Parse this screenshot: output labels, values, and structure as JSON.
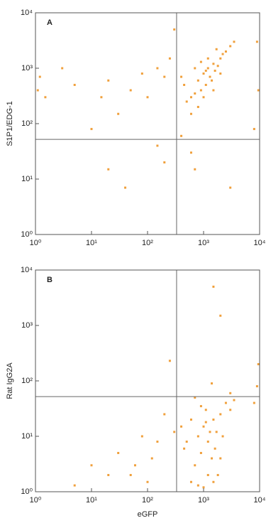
{
  "chart_data": [
    {
      "type": "scatter",
      "title": "A",
      "y_label": "S1P1/EDG-1",
      "log_x": true,
      "log_y": true,
      "color": "#f0a03c",
      "xlim": [
        1,
        10000
      ],
      "ylim": [
        1,
        10000
      ],
      "xticks": [
        {
          "value": 1,
          "label": "10⁰"
        },
        {
          "value": 10,
          "label": "10¹"
        },
        {
          "value": 100,
          "label": "10²"
        },
        {
          "value": 1000,
          "label": "10³"
        },
        {
          "value": 10000,
          "label": "10⁴"
        }
      ],
      "yticks": [
        {
          "value": 1,
          "label": "10⁰"
        },
        {
          "value": 10,
          "label": "10¹"
        },
        {
          "value": 100,
          "label": "10²"
        },
        {
          "value": 1000,
          "label": "10³"
        },
        {
          "value": 10000,
          "label": "10⁴"
        }
      ],
      "quadrant_x": 330,
      "quadrant_y": 52,
      "x": [
        800,
        1000,
        1200,
        1500,
        900,
        700,
        1100,
        1300,
        1600,
        2000,
        2500,
        1800,
        600,
        500,
        1000,
        1400,
        2200,
        3000,
        400,
        700,
        1200,
        800,
        1500,
        2000,
        900,
        600,
        3500,
        450,
        1700,
        1100,
        1.2,
        1.1,
        1.5,
        3,
        5,
        10,
        15,
        20,
        30,
        50,
        80,
        100,
        150,
        200,
        250,
        300,
        400,
        150,
        20,
        40,
        200,
        600,
        3000,
        700,
        8000,
        9000,
        9500
      ],
      "values": [
        600,
        800,
        1000,
        1200,
        400,
        350,
        500,
        700,
        900,
        1500,
        2000,
        1100,
        300,
        250,
        300,
        600,
        1800,
        2500,
        700,
        1000,
        1500,
        200,
        400,
        800,
        1300,
        150,
        3000,
        500,
        2200,
        900,
        700,
        400,
        300,
        1000,
        500,
        80,
        300,
        600,
        150,
        400,
        800,
        300,
        1000,
        700,
        1500,
        5000,
        60,
        40,
        15,
        7,
        20,
        30,
        7,
        15,
        80,
        3000,
        400
      ]
    },
    {
      "type": "scatter",
      "title": "B",
      "y_label": "Rat IgG2A",
      "x_label": "eGFP",
      "log_x": true,
      "log_y": true,
      "color": "#f0a03c",
      "xlim": [
        1,
        10000
      ],
      "ylim": [
        1,
        10000
      ],
      "xticks": [
        {
          "value": 1,
          "label": "10⁰"
        },
        {
          "value": 10,
          "label": "10¹"
        },
        {
          "value": 100,
          "label": "10²"
        },
        {
          "value": 1000,
          "label": "10³"
        },
        {
          "value": 10000,
          "label": "10⁴"
        }
      ],
      "yticks": [
        {
          "value": 1,
          "label": "10⁰"
        },
        {
          "value": 10,
          "label": "10¹"
        },
        {
          "value": 100,
          "label": "10²"
        },
        {
          "value": 1000,
          "label": "10³"
        },
        {
          "value": 10000,
          "label": "10⁴"
        }
      ],
      "quadrant_x": 330,
      "quadrant_y": 52,
      "x": [
        800,
        1000,
        1200,
        1500,
        900,
        700,
        1100,
        1300,
        1600,
        2000,
        2500,
        1800,
        600,
        500,
        1000,
        1400,
        2200,
        3000,
        400,
        700,
        1200,
        800,
        1500,
        2000,
        900,
        600,
        3500,
        450,
        1700,
        1100,
        5,
        10,
        20,
        30,
        50,
        80,
        100,
        150,
        200,
        250,
        300,
        1500,
        2000,
        3000,
        1400,
        9000,
        9500,
        60,
        120,
        8000
      ],
      "values": [
        10,
        15,
        8,
        20,
        5,
        3,
        30,
        12,
        6,
        25,
        40,
        2,
        1.5,
        8,
        1.2,
        4,
        10,
        30,
        15,
        50,
        2,
        1.3,
        1.5,
        4,
        35,
        20,
        45,
        6,
        12,
        18,
        1.3,
        3,
        2,
        5,
        2,
        10,
        1.5,
        8,
        25,
        230,
        12,
        5000,
        1500,
        60,
        90,
        80,
        200,
        3,
        4,
        40
      ]
    }
  ]
}
